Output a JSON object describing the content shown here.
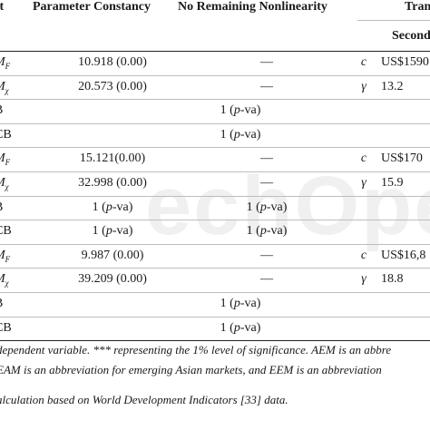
{
  "header": {
    "col_test": "st",
    "col_param": "Parameter Constancy",
    "col_nonlin": "No Remaining Nonlinearity",
    "col_trans": "Trans",
    "col_second": "Second"
  },
  "rows": [
    {
      "test": "M F",
      "param": "10.918 (0.00)",
      "nonlin": "—",
      "sym": "c",
      "val": "US$1590"
    },
    {
      "test": "M χ",
      "param": "20.573 (0.00)",
      "nonlin": "—",
      "sym": "γ",
      "val": "13.2"
    },
    {
      "test": "B",
      "mid": "1 (p-va)"
    },
    {
      "test": "CB",
      "mid": "1 (p-va)"
    },
    {
      "test": "M F",
      "param": "15.121(0.00)",
      "nonlin": "—",
      "sym": "c",
      "val": "US$170"
    },
    {
      "test": "M χ",
      "param": "32.998 (0.00)",
      "nonlin": "—",
      "sym": "γ",
      "val": "15.9"
    },
    {
      "test": "B",
      "param": "1 (p-va)",
      "nonlin": "1 (p-va)"
    },
    {
      "test": "CB",
      "param": "1 (p-va)",
      "nonlin": "1 (p-va)"
    },
    {
      "test": "M F",
      "param": "9.987 (0.00)",
      "nonlin": "—",
      "sym": "c",
      "val": "US$16,8"
    },
    {
      "test": "M χ",
      "param": "39.209 (0.00)",
      "nonlin": "—",
      "sym": "γ",
      "val": "18.8"
    },
    {
      "test": "B",
      "mid": "1 (p-va)"
    },
    {
      "test": "CB",
      "mid": "1 (p-va)"
    }
  ],
  "notes": {
    "line1": "dependent variable. *** representing the 1% level of significance. AEM is an abbre",
    "line2": "EAM is an abbreviation for emerging Asian markets, and EEM is an abbreviation",
    "line3": "alculation based on World Development Indicators [33] data."
  },
  "watermark": "echOpe"
}
